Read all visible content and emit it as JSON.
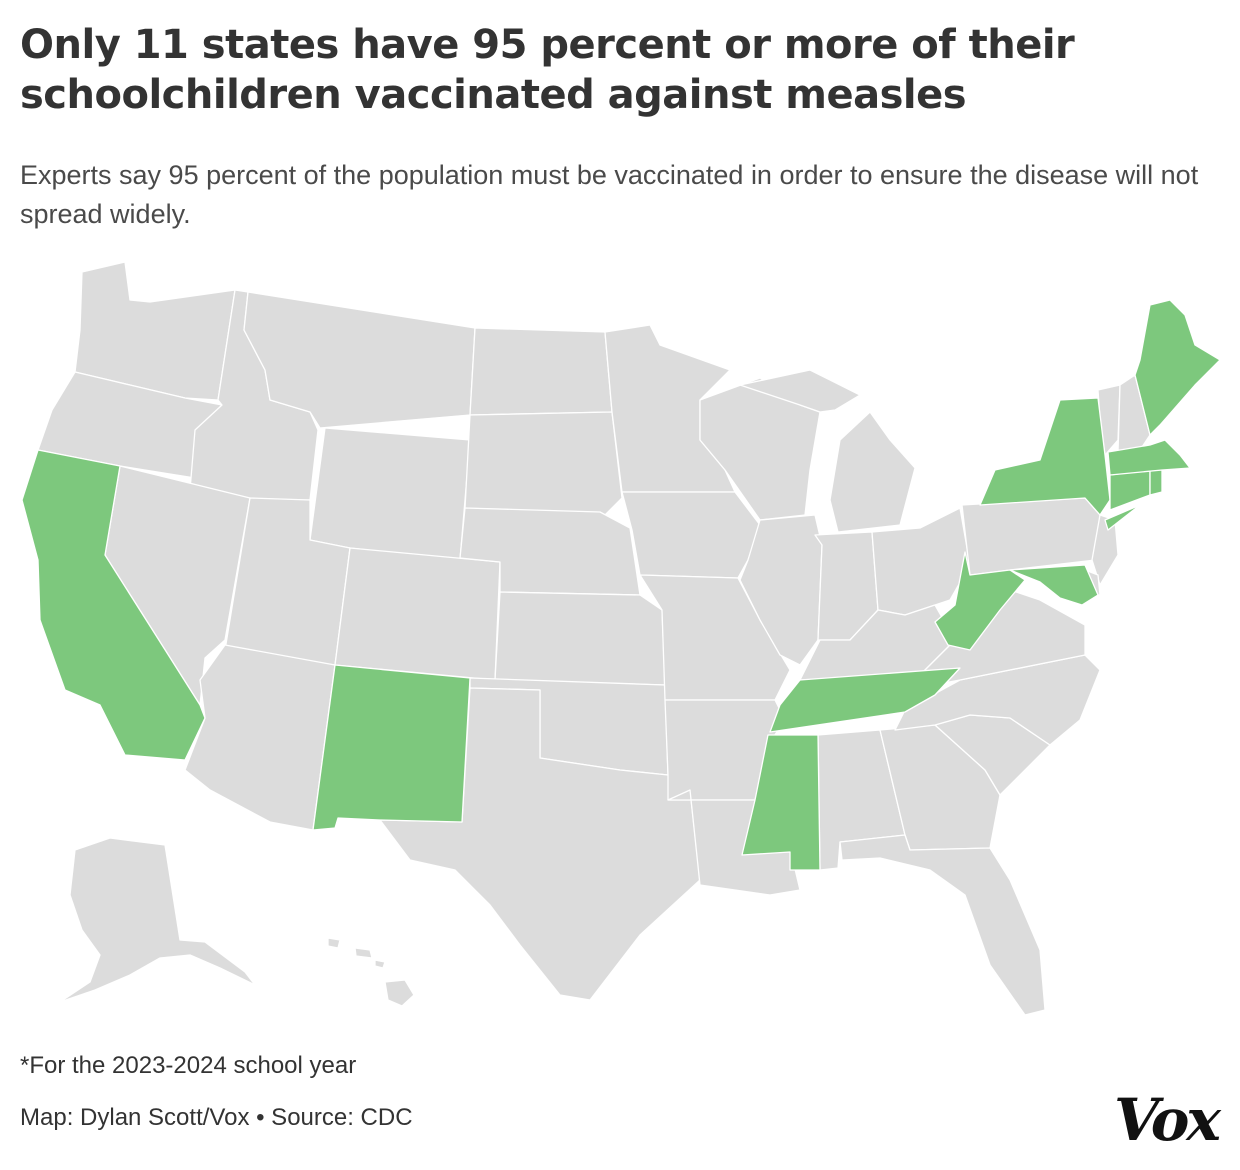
{
  "title": "Only 11 states have 95 percent or more of their schoolchildren vaccinated against measles",
  "subtitle": "Experts say 95 percent of the population must be vaccinated in order to ensure the disease will not spread widely.",
  "footnote": "*For the 2023-2024 school year",
  "credit": "Map: Dylan Scott/Vox • Source: CDC",
  "logo": "Vox",
  "colors": {
    "at_or_above_95": "#7dc87d",
    "below_95": "#dcdcdc",
    "border": "#ffffff"
  },
  "states_at_or_above_95_percent": [
    "California",
    "New Mexico",
    "Mississippi",
    "Tennessee",
    "West Virginia",
    "Maryland",
    "New York",
    "Connecticut",
    "Massachusetts",
    "Rhode Island",
    "Maine"
  ]
}
